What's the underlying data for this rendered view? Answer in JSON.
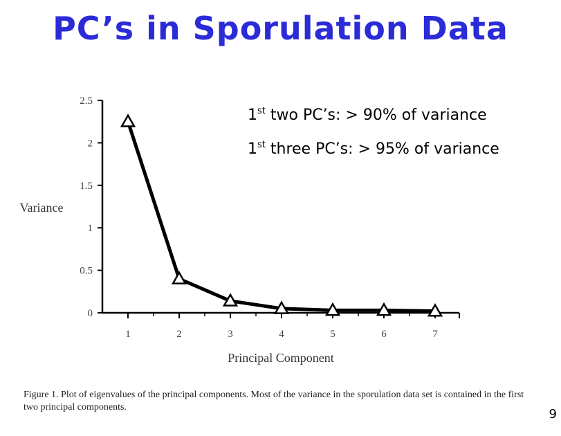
{
  "slide": {
    "title": "PC’s in Sporulation Data",
    "page_number": "9"
  },
  "annotations": [
    {
      "prefix": "1",
      "sup": "st",
      "text": " two PC’s: > 90% of variance"
    },
    {
      "prefix": "1",
      "sup": "st",
      "text": " three PC’s: > 95% of variance"
    }
  ],
  "caption": "Figure 1.  Plot of eigenvalues of the principal components.  Most of the variance in the sporulation data set is contained in the first two principal components.",
  "chart_data": {
    "type": "line",
    "title": "",
    "xlabel": "Principal Component",
    "ylabel": "Variance",
    "x": [
      1,
      2,
      3,
      4,
      5,
      6,
      7
    ],
    "values": [
      2.25,
      0.4,
      0.14,
      0.05,
      0.03,
      0.03,
      0.02
    ],
    "xticks": [
      "1",
      "2",
      "3",
      "4",
      "5",
      "6",
      "7"
    ],
    "yticks": [
      "0",
      "0.5",
      "1",
      "1.5",
      "2",
      "2.5"
    ],
    "ylim": [
      0,
      2.5
    ],
    "marker": "triangle",
    "line_color": "#000000"
  }
}
